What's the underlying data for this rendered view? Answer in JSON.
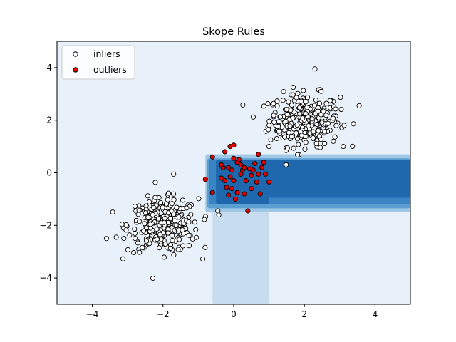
{
  "chart_data": {
    "type": "scatter",
    "title": "Skope Rules",
    "xlabel": "",
    "ylabel": "",
    "xlim": [
      -5,
      5
    ],
    "ylim": [
      -5,
      5
    ],
    "x_ticks": [
      -4,
      -2,
      0,
      2,
      4
    ],
    "y_ticks": [
      -4,
      -2,
      0,
      2,
      4
    ],
    "x_tick_labels": [
      "−4",
      "−2",
      "0",
      "2",
      "4"
    ],
    "y_tick_labels": [
      "−4",
      "−2",
      "0",
      "2",
      "4"
    ],
    "grid": false,
    "legend_position": "top-left",
    "legend": [
      {
        "label": "inliers",
        "fill": "#ffffff",
        "edge": "#000000"
      },
      {
        "label": "outliers",
        "fill": "#e00000",
        "edge": "#000000"
      }
    ],
    "background_color": "#e8f0fa",
    "decision_regions": [
      {
        "x": [
          -0.6,
          1.0
        ],
        "y": [
          -5,
          0.65
        ],
        "color": "#c8dcf0"
      },
      {
        "x": [
          -0.8,
          5.0
        ],
        "y": [
          -1.5,
          0.7
        ],
        "color": "#9ec8e6"
      },
      {
        "x": [
          -0.75,
          5.0
        ],
        "y": [
          -1.35,
          0.55
        ],
        "color": "#5a9ed2"
      },
      {
        "x": [
          -0.7,
          5.0
        ],
        "y": [
          -1.2,
          0.5
        ],
        "color": "#3a84c4"
      },
      {
        "x": [
          -0.5,
          5.0
        ],
        "y": [
          -0.95,
          0.5
        ],
        "color": "#1f68ae"
      },
      {
        "x": [
          -0.5,
          1.0
        ],
        "y": [
          -1.2,
          0.5
        ],
        "color": "#1f68ae"
      }
    ],
    "series": [
      {
        "name": "inliers",
        "clusters": [
          {
            "center": [
              2.0,
              2.0
            ],
            "spread": 0.5,
            "count": 300
          },
          {
            "center": [
              -2.0,
              -2.0
            ],
            "spread": 0.5,
            "count": 300
          }
        ],
        "points": [
          [
            2.3,
            3.95
          ],
          [
            3.55,
            2.55
          ],
          [
            -3.6,
            -2.5
          ],
          [
            -1.7,
            -0.05
          ],
          [
            1.0,
            1.0
          ],
          [
            3.1,
            1.0
          ],
          [
            -0.45,
            -1.45
          ]
        ]
      },
      {
        "name": "outliers",
        "points": [
          [
            -0.6,
            0.6
          ],
          [
            -0.8,
            -0.25
          ],
          [
            -0.6,
            -0.75
          ],
          [
            -0.1,
            1.0
          ],
          [
            0.0,
            1.05
          ],
          [
            -0.25,
            0.8
          ],
          [
            -0.3,
            0.2
          ],
          [
            -0.15,
            0.2
          ],
          [
            0.0,
            0.55
          ],
          [
            0.1,
            0.4
          ],
          [
            0.2,
            0.3
          ],
          [
            0.25,
            0.1
          ],
          [
            0.3,
            0.2
          ],
          [
            0.45,
            0.15
          ],
          [
            0.55,
            0.1
          ],
          [
            0.7,
            0.7
          ],
          [
            0.8,
            0.2
          ],
          [
            0.85,
            0.4
          ],
          [
            1.0,
            -0.35
          ],
          [
            0.9,
            -0.05
          ],
          [
            0.7,
            -0.05
          ],
          [
            0.5,
            -0.1
          ],
          [
            0.35,
            -0.3
          ],
          [
            0.2,
            -0.05
          ],
          [
            0.0,
            -0.3
          ],
          [
            -0.1,
            -0.15
          ],
          [
            -0.25,
            -0.3
          ],
          [
            -0.35,
            -0.2
          ],
          [
            -0.2,
            -0.55
          ],
          [
            -0.05,
            -0.6
          ],
          [
            0.1,
            -0.75
          ],
          [
            0.3,
            -0.8
          ],
          [
            0.5,
            -0.6
          ],
          [
            0.65,
            -0.35
          ],
          [
            0.75,
            -0.8
          ],
          [
            -0.15,
            -0.85
          ],
          [
            0.05,
            -1.0
          ],
          [
            0.4,
            -1.45
          ],
          [
            -0.35,
            0.3
          ],
          [
            0.6,
            0.35
          ],
          [
            0.15,
            0.5
          ],
          [
            -0.05,
            0.1
          ]
        ]
      }
    ]
  }
}
